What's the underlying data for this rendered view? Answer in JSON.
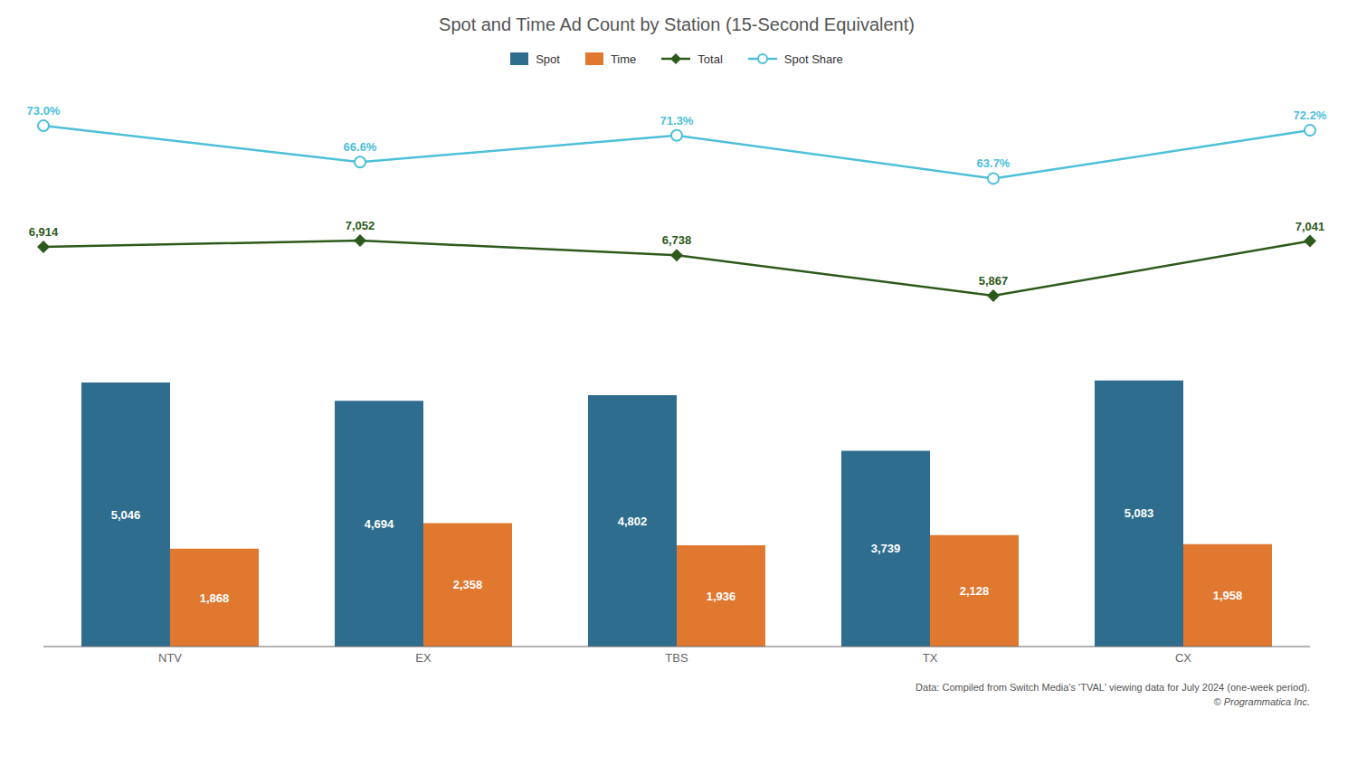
{
  "chart_data": [
    {
      "type": "line",
      "title": "Spot and Time Ad Count by Station (15-Second Equivalent)",
      "categories": [
        "NTV",
        "EX",
        "TBS",
        "TX",
        "CX"
      ],
      "series": [
        {
          "name": "Total",
          "color": "#2D5A1B",
          "marker": "diamond",
          "values": [
            6914,
            7052,
            6738,
            5867,
            7041
          ],
          "value_labels": [
            "6,914",
            "7,052",
            "6,738",
            "5,867",
            "7,041"
          ]
        },
        {
          "name": "Spot Share",
          "color": "#4DC0D8",
          "marker": "circle",
          "axis": "y2",
          "values": [
            73.0,
            66.6,
            71.3,
            63.7,
            72.2
          ],
          "value_labels": [
            "73.0%",
            "66.6%",
            "71.3%",
            "63.7%",
            "72.2%"
          ]
        }
      ],
      "ylim": [
        5500,
        10000
      ],
      "y2lim": [
        40,
        77
      ],
      "data_labels": true,
      "tick_labels": false,
      "grid": false,
      "legend": "top"
    },
    {
      "type": "bar",
      "categories": [
        "NTV",
        "EX",
        "TBS",
        "TX",
        "CX"
      ],
      "series": [
        {
          "name": "Spot",
          "color": "#2E6D8E",
          "values": [
            5046,
            4694,
            4802,
            3739,
            5083
          ],
          "value_labels": [
            "5,046",
            "4,694",
            "4,802",
            "3,739",
            "5,083"
          ]
        },
        {
          "name": "Time",
          "color": "#E07830",
          "values": [
            1868,
            2358,
            1936,
            2128,
            1958
          ],
          "value_labels": [
            "1,868",
            "2,358",
            "1,936",
            "2,128",
            "1,958"
          ]
        }
      ],
      "ylim": [
        0,
        6201.26
      ],
      "data_labels": true,
      "tick_labels": "x",
      "grid": false,
      "annotations": [
        "Data: Compiled from Switch Media's 'TVAL' viewing data for July 2024 (one-week period).",
        "© Programmatica Inc."
      ]
    }
  ]
}
